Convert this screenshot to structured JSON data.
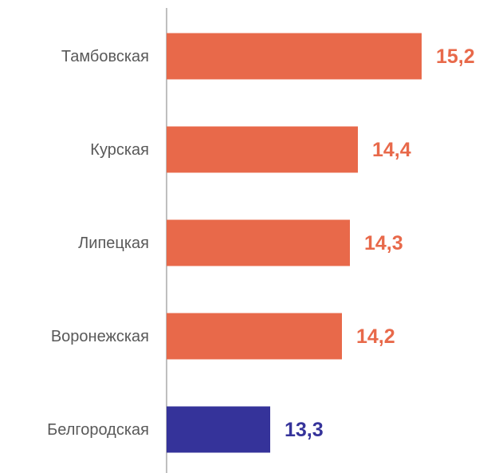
{
  "chart_data": {
    "type": "hbar",
    "categories": [
      "Тамбовская",
      "Курская",
      "Липецкая",
      "Воронежская",
      "Белгородская"
    ],
    "values": [
      15.2,
      14.4,
      14.3,
      14.2,
      13.3
    ],
    "value_labels": [
      "15,2",
      "14,4",
      "14,3",
      "14,2",
      "13,3"
    ],
    "colors": [
      "#e8694a",
      "#e8694a",
      "#e8694a",
      "#e8694a",
      "#35339a"
    ],
    "xlim": [
      12,
      16
    ]
  }
}
